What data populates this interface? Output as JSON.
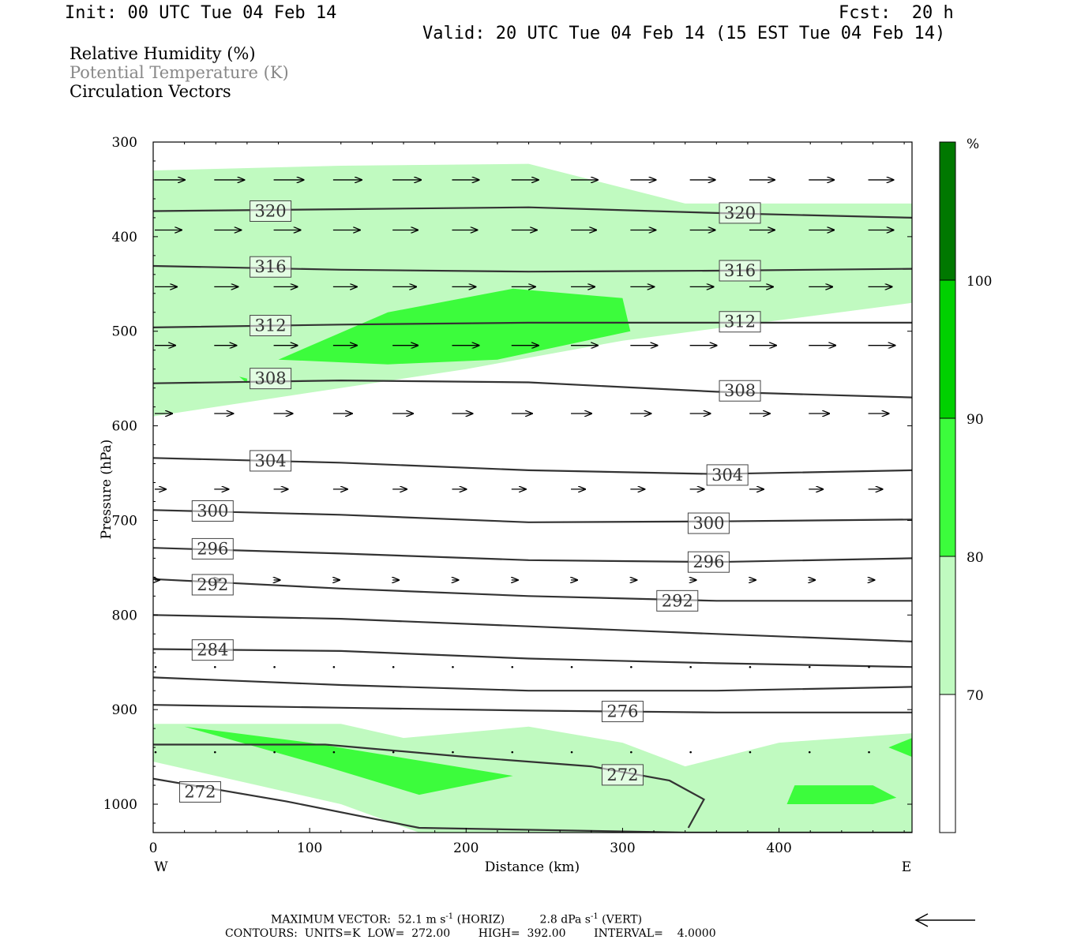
{
  "header": {
    "init": "Init: 00 UTC Tue 04 Feb 14",
    "fcst": "Fcst:  20 h",
    "valid": "Valid: 20 UTC Tue 04 Feb 14 (15 EST Tue 04 Feb 14)"
  },
  "legend": {
    "line1": "Relative Humidity (%)",
    "line2": "Potential Temperature (K)",
    "line3": "Circulation Vectors"
  },
  "footer": {
    "line1_prefix": "MAXIMUM VECTOR:  52.1 m s",
    "line1_mid": " (HORIZ)          2.8 dPa s",
    "line1_suffix": " (VERT)",
    "exp": "-1",
    "line2": "CONTOURS:  UNITS=K  LOW=  272.00        HIGH=  392.00        INTERVAL=    4.0000"
  },
  "colors": {
    "rh70": "#c0fac0",
    "rh80": "#3cfc3c",
    "rh90": "#00d000",
    "rh100": "#007800",
    "contour": "#333333"
  },
  "chart_data": {
    "type": "cross-section",
    "xlabel": "Distance (km)",
    "ylabel": "Pressure (hPa)",
    "xlim": [
      0,
      485
    ],
    "ylim": [
      1030,
      300
    ],
    "x_ticks": [
      0,
      100,
      200,
      300,
      400
    ],
    "y_ticks": [
      300,
      400,
      500,
      600,
      700,
      800,
      900,
      1000
    ],
    "x_end_labels": {
      "left": "W",
      "right": "E"
    },
    "colorbar": {
      "unit": "%",
      "levels": [
        "70",
        "80",
        "90",
        "100"
      ],
      "colors": [
        "#ffffff",
        "#c0fac0",
        "#3cfc3c",
        "#00d000",
        "#007800"
      ]
    },
    "theta_contours": [
      {
        "label": "320",
        "labels_at": [
          [
            75,
            373
          ],
          [
            375,
            375
          ]
        ],
        "points": [
          [
            0,
            373
          ],
          [
            120,
            371
          ],
          [
            240,
            369
          ],
          [
            360,
            375
          ],
          [
            485,
            380
          ]
        ]
      },
      {
        "label": "316",
        "labels_at": [
          [
            75,
            432
          ],
          [
            375,
            436
          ]
        ],
        "points": [
          [
            0,
            431
          ],
          [
            120,
            435
          ],
          [
            240,
            437
          ],
          [
            360,
            436
          ],
          [
            485,
            434
          ]
        ]
      },
      {
        "label": "312",
        "labels_at": [
          [
            75,
            494
          ],
          [
            375,
            490
          ]
        ],
        "points": [
          [
            0,
            496
          ],
          [
            120,
            493
          ],
          [
            240,
            491
          ],
          [
            360,
            491
          ],
          [
            485,
            491
          ]
        ]
      },
      {
        "label": "308",
        "labels_at": [
          [
            75,
            550
          ],
          [
            375,
            563
          ]
        ],
        "points": [
          [
            0,
            555
          ],
          [
            120,
            552
          ],
          [
            240,
            554
          ],
          [
            360,
            564
          ],
          [
            485,
            570
          ]
        ]
      },
      {
        "label": "304",
        "labels_at": [
          [
            75,
            637
          ],
          [
            367,
            652
          ]
        ],
        "points": [
          [
            0,
            634
          ],
          [
            120,
            639
          ],
          [
            240,
            647
          ],
          [
            360,
            651
          ],
          [
            485,
            647
          ]
        ]
      },
      {
        "label": "300",
        "labels_at": [
          [
            38,
            690
          ],
          [
            355,
            703
          ]
        ],
        "points": [
          [
            0,
            689
          ],
          [
            120,
            694
          ],
          [
            240,
            702
          ],
          [
            360,
            701
          ],
          [
            485,
            699
          ]
        ]
      },
      {
        "label": "296",
        "labels_at": [
          [
            38,
            730
          ],
          [
            355,
            744
          ]
        ],
        "points": [
          [
            0,
            729
          ],
          [
            120,
            735
          ],
          [
            240,
            742
          ],
          [
            360,
            744
          ],
          [
            485,
            740
          ]
        ]
      },
      {
        "label": "292",
        "labels_at": [
          [
            38,
            768
          ],
          [
            335,
            785
          ]
        ],
        "points": [
          [
            0,
            762
          ],
          [
            120,
            772
          ],
          [
            240,
            780
          ],
          [
            360,
            785
          ],
          [
            485,
            785
          ]
        ]
      },
      {
        "label": "288",
        "labels_at": [],
        "points": [
          [
            0,
            800
          ],
          [
            120,
            804
          ],
          [
            240,
            812
          ],
          [
            360,
            820
          ],
          [
            485,
            828
          ]
        ]
      },
      {
        "label": "284",
        "labels_at": [
          [
            38,
            837
          ]
        ],
        "points": [
          [
            0,
            836
          ],
          [
            120,
            838
          ],
          [
            240,
            846
          ],
          [
            360,
            851
          ],
          [
            485,
            855
          ]
        ]
      },
      {
        "label": "280",
        "labels_at": [],
        "points": [
          [
            0,
            866
          ],
          [
            120,
            874
          ],
          [
            240,
            880
          ],
          [
            360,
            880
          ],
          [
            485,
            876
          ]
        ]
      },
      {
        "label": "276",
        "labels_at": [
          [
            300,
            902
          ]
        ],
        "points": [
          [
            0,
            895
          ],
          [
            120,
            898
          ],
          [
            240,
            901
          ],
          [
            360,
            903
          ],
          [
            485,
            903
          ]
        ]
      },
      {
        "label": "272",
        "labels_at": [
          [
            30,
            987
          ],
          [
            300,
            969
          ]
        ],
        "points": [
          [
            0,
            937
          ],
          [
            110,
            937
          ],
          [
            200,
            950
          ],
          [
            280,
            960
          ],
          [
            330,
            975
          ],
          [
            352,
            995
          ],
          [
            342,
            1025
          ]
        ]
      },
      {
        "label": "272",
        "labels_at": [],
        "points": [
          [
            0,
            973
          ],
          [
            85,
            997
          ],
          [
            170,
            1025
          ],
          [
            340,
            1030
          ],
          [
            485,
            1030
          ]
        ]
      }
    ],
    "rh_regions": [
      {
        "level": ">=70",
        "points": [
          [
            0,
            330
          ],
          [
            120,
            325
          ],
          [
            240,
            323
          ],
          [
            340,
            365
          ],
          [
            485,
            365
          ],
          [
            485,
            470
          ],
          [
            300,
            510
          ],
          [
            200,
            540
          ],
          [
            120,
            560
          ],
          [
            0,
            590
          ]
        ]
      },
      {
        "level": ">=80",
        "points": [
          [
            80,
            530
          ],
          [
            150,
            480
          ],
          [
            230,
            455
          ],
          [
            300,
            465
          ],
          [
            305,
            500
          ],
          [
            220,
            530
          ],
          [
            150,
            535
          ]
        ]
      },
      {
        "level": ">=80",
        "points": [
          [
            60,
            555
          ],
          [
            60,
            550
          ],
          [
            55,
            548
          ]
        ]
      },
      {
        "level": ">=70",
        "points": [
          [
            0,
            915
          ],
          [
            120,
            915
          ],
          [
            160,
            930
          ],
          [
            240,
            918
          ],
          [
            300,
            935
          ],
          [
            340,
            960
          ],
          [
            400,
            935
          ],
          [
            485,
            925
          ],
          [
            485,
            1030
          ],
          [
            300,
            1030
          ],
          [
            170,
            1030
          ],
          [
            120,
            1000
          ],
          [
            0,
            955
          ]
        ]
      },
      {
        "level": ">=80",
        "points": [
          [
            20,
            918
          ],
          [
            100,
            935
          ],
          [
            230,
            970
          ],
          [
            170,
            990
          ],
          [
            110,
            960
          ]
        ]
      },
      {
        "level": ">=80",
        "points": [
          [
            410,
            980
          ],
          [
            460,
            980
          ],
          [
            475,
            993
          ],
          [
            460,
            1000
          ],
          [
            405,
            1000
          ]
        ]
      },
      {
        "level": ">=80",
        "points": [
          [
            470,
            940
          ],
          [
            485,
            930
          ],
          [
            485,
            950
          ]
        ]
      }
    ],
    "vector_rows": [
      {
        "p": 340,
        "lengths": [
          38,
          38,
          38,
          36,
          36,
          34,
          34,
          34,
          32,
          32,
          32,
          32,
          32
        ]
      },
      {
        "p": 393,
        "lengths": [
          34,
          34,
          34,
          34,
          32,
          32,
          32,
          32,
          32,
          32,
          32,
          32,
          32
        ]
      },
      {
        "p": 453,
        "lengths": [
          28,
          30,
          30,
          30,
          30,
          30,
          30,
          30,
          30,
          30,
          30,
          30,
          30
        ]
      },
      {
        "p": 515,
        "lengths": [
          26,
          28,
          30,
          30,
          32,
          34,
          34,
          34,
          34,
          34,
          34,
          34,
          34
        ]
      },
      {
        "p": 587,
        "lengths": [
          22,
          24,
          24,
          24,
          26,
          26,
          26,
          26,
          26,
          26,
          26,
          26,
          26
        ]
      },
      {
        "p": 667,
        "lengths": [
          14,
          18,
          18,
          18,
          18,
          18,
          18,
          18,
          18,
          18,
          18,
          18,
          18
        ]
      },
      {
        "p": 763,
        "lengths": [
          6,
          8,
          8,
          8,
          8,
          8,
          8,
          8,
          8,
          8,
          8,
          8,
          8
        ]
      },
      {
        "p": 855,
        "lengths": [
          2,
          2,
          2,
          2,
          2,
          2,
          2,
          2,
          2,
          2,
          2,
          2,
          2
        ]
      },
      {
        "p": 945,
        "lengths": [
          2,
          2,
          2,
          2,
          2,
          2,
          2,
          2,
          2,
          2,
          2,
          2,
          2
        ]
      }
    ],
    "vector_x": [
      0,
      38,
      76,
      114,
      152,
      190,
      228,
      266,
      304,
      342,
      380,
      418,
      456
    ]
  }
}
